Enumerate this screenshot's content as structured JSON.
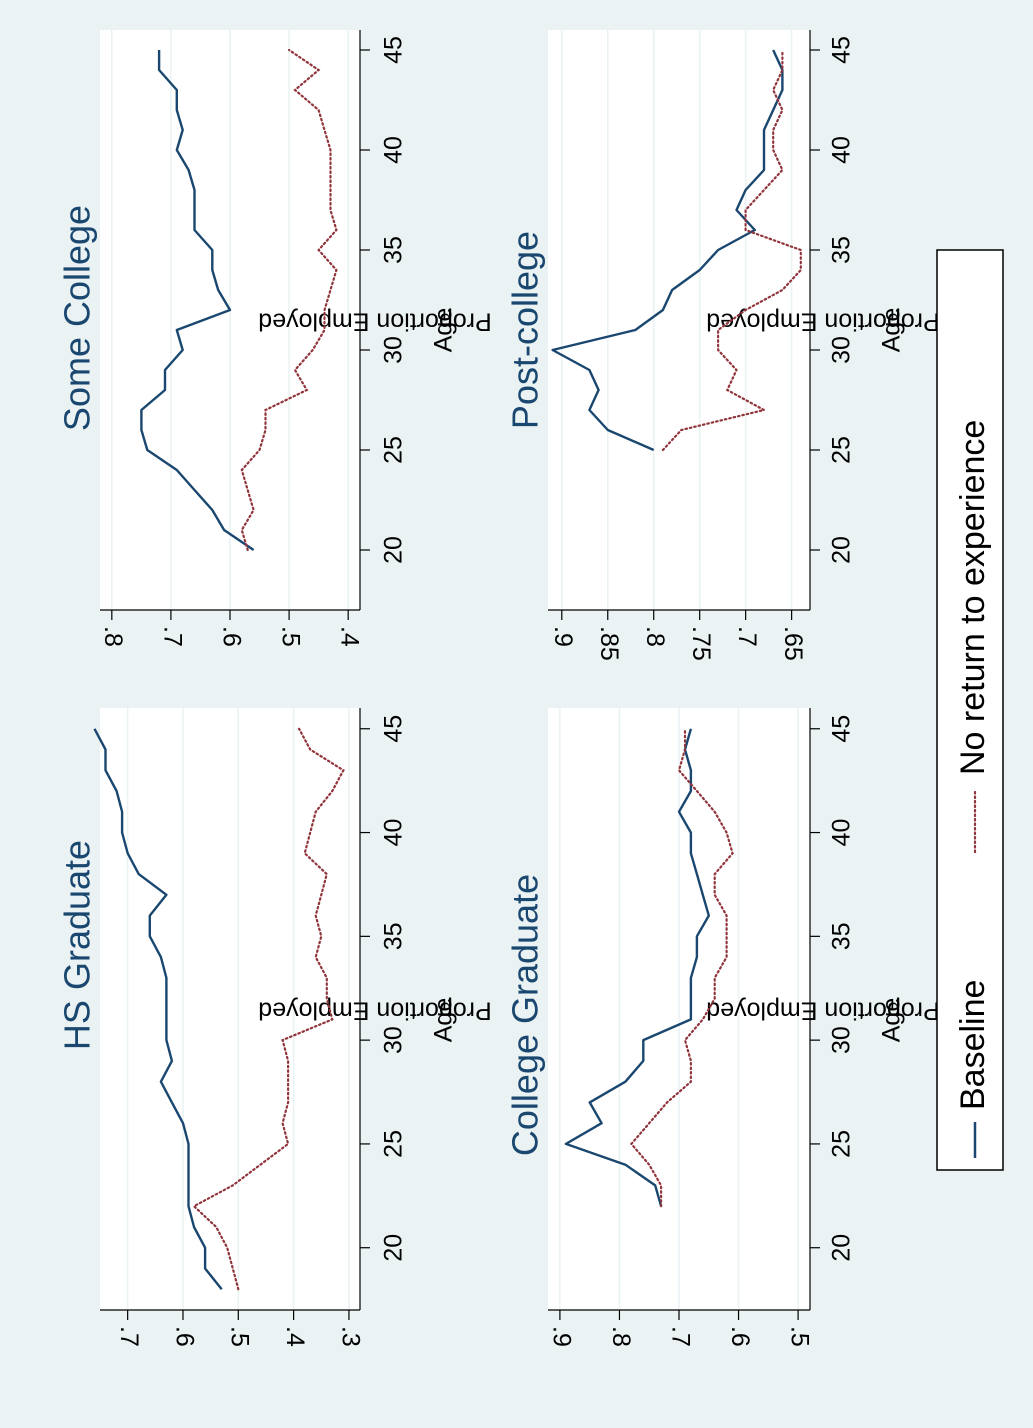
{
  "colors": {
    "baseline": "#1a476f",
    "noreturn": "#90353b",
    "background": "#eaf2f3",
    "grid": "#eaf2f3"
  },
  "legend": {
    "baseline_label": "Baseline",
    "noreturn_label": "No return to experience"
  },
  "chart_data": [
    {
      "type": "line",
      "title": "HS Graduate",
      "xlabel": "Age",
      "ylabel": "Proportion Employed",
      "xlim": [
        17,
        46
      ],
      "ylim": [
        0.28,
        0.75
      ],
      "xticks": [
        20,
        25,
        30,
        35,
        40,
        45
      ],
      "xtick_labels": [
        "20",
        "25",
        "30",
        "35",
        "40",
        "45"
      ],
      "yticks": [
        0.3,
        0.4,
        0.5,
        0.6,
        0.7
      ],
      "ytick_labels": [
        ".3",
        ".4",
        ".5",
        ".6",
        ".7"
      ],
      "series": [
        {
          "name": "Baseline",
          "style": "solid",
          "x": [
            18,
            19,
            20,
            21,
            22,
            23,
            24,
            25,
            26,
            27,
            28,
            29,
            30,
            31,
            32,
            33,
            34,
            35,
            36,
            37,
            38,
            39,
            40,
            41,
            42,
            43,
            44,
            45
          ],
          "y": [
            0.53,
            0.56,
            0.56,
            0.58,
            0.59,
            0.59,
            0.59,
            0.59,
            0.6,
            0.62,
            0.64,
            0.62,
            0.63,
            0.63,
            0.63,
            0.63,
            0.64,
            0.66,
            0.66,
            0.63,
            0.68,
            0.7,
            0.71,
            0.71,
            0.72,
            0.74,
            0.74,
            0.76
          ]
        },
        {
          "name": "No return to experience",
          "style": "dotted",
          "x": [
            18,
            19,
            20,
            21,
            22,
            23,
            24,
            25,
            26,
            27,
            28,
            29,
            30,
            31,
            32,
            33,
            34,
            35,
            36,
            37,
            38,
            39,
            40,
            41,
            42,
            43,
            44,
            45
          ],
          "y": [
            0.5,
            0.51,
            0.52,
            0.54,
            0.58,
            0.51,
            0.46,
            0.41,
            0.42,
            0.41,
            0.41,
            0.41,
            0.42,
            0.33,
            0.34,
            0.34,
            0.36,
            0.35,
            0.36,
            0.35,
            0.34,
            0.38,
            0.37,
            0.36,
            0.33,
            0.31,
            0.37,
            0.39
          ]
        }
      ]
    },
    {
      "type": "line",
      "title": "Some College",
      "xlabel": "Age",
      "ylabel": "Proportion Employed",
      "xlim": [
        17,
        46
      ],
      "ylim": [
        0.38,
        0.82
      ],
      "xticks": [
        20,
        25,
        30,
        35,
        40,
        45
      ],
      "xtick_labels": [
        "20",
        "25",
        "30",
        "35",
        "40",
        "45"
      ],
      "yticks": [
        0.4,
        0.5,
        0.6,
        0.7,
        0.8
      ],
      "ytick_labels": [
        ".4",
        ".5",
        ".6",
        ".7",
        ".8"
      ],
      "series": [
        {
          "name": "Baseline",
          "style": "solid",
          "x": [
            20,
            21,
            22,
            23,
            24,
            25,
            26,
            27,
            28,
            29,
            30,
            31,
            32,
            33,
            34,
            35,
            36,
            37,
            38,
            39,
            40,
            41,
            42,
            43,
            44,
            45
          ],
          "y": [
            0.56,
            0.61,
            0.63,
            0.66,
            0.69,
            0.74,
            0.75,
            0.75,
            0.71,
            0.71,
            0.68,
            0.69,
            0.6,
            0.62,
            0.63,
            0.63,
            0.66,
            0.66,
            0.66,
            0.67,
            0.69,
            0.68,
            0.69,
            0.69,
            0.72,
            0.72
          ]
        },
        {
          "name": "No return to experience",
          "style": "dotted",
          "x": [
            20,
            21,
            22,
            23,
            24,
            25,
            26,
            27,
            28,
            29,
            30,
            31,
            32,
            33,
            34,
            35,
            36,
            37,
            38,
            39,
            40,
            41,
            42,
            43,
            44,
            45
          ],
          "y": [
            0.57,
            0.58,
            0.56,
            0.57,
            0.58,
            0.55,
            0.54,
            0.54,
            0.47,
            0.49,
            0.46,
            0.44,
            0.44,
            0.43,
            0.42,
            0.45,
            0.42,
            0.43,
            0.43,
            0.43,
            0.43,
            0.44,
            0.45,
            0.49,
            0.45,
            0.5
          ]
        }
      ]
    },
    {
      "type": "line",
      "title": "College Graduate",
      "xlabel": "Age",
      "ylabel": "Proportion Employed",
      "xlim": [
        17,
        46
      ],
      "ylim": [
        0.48,
        0.92
      ],
      "xticks": [
        20,
        25,
        30,
        35,
        40,
        45
      ],
      "xtick_labels": [
        "20",
        "25",
        "30",
        "35",
        "40",
        "45"
      ],
      "yticks": [
        0.5,
        0.6,
        0.7,
        0.8,
        0.9
      ],
      "ytick_labels": [
        ".5",
        ".6",
        ".7",
        ".8",
        ".9"
      ],
      "series": [
        {
          "name": "Baseline",
          "style": "solid",
          "x": [
            22,
            23,
            24,
            25,
            26,
            27,
            28,
            29,
            30,
            31,
            32,
            33,
            34,
            35,
            36,
            37,
            38,
            39,
            40,
            41,
            42,
            43,
            44,
            45
          ],
          "y": [
            0.73,
            0.74,
            0.79,
            0.89,
            0.83,
            0.85,
            0.79,
            0.76,
            0.76,
            0.68,
            0.68,
            0.68,
            0.67,
            0.67,
            0.65,
            0.66,
            0.67,
            0.68,
            0.68,
            0.7,
            0.68,
            0.68,
            0.69,
            0.68
          ]
        },
        {
          "name": "No return to experience",
          "style": "dotted",
          "x": [
            22,
            23,
            24,
            25,
            26,
            27,
            28,
            29,
            30,
            31,
            32,
            33,
            34,
            35,
            36,
            37,
            38,
            39,
            40,
            41,
            42,
            43,
            44,
            45
          ],
          "y": [
            0.73,
            0.73,
            0.75,
            0.78,
            0.75,
            0.72,
            0.68,
            0.68,
            0.69,
            0.66,
            0.64,
            0.64,
            0.62,
            0.62,
            0.62,
            0.64,
            0.64,
            0.61,
            0.62,
            0.64,
            0.67,
            0.7,
            0.69,
            0.69
          ]
        }
      ]
    },
    {
      "type": "line",
      "title": "Post-college",
      "xlabel": "Age",
      "ylabel": "Proportion Employed",
      "xlim": [
        17,
        46
      ],
      "ylim": [
        0.63,
        0.915
      ],
      "xticks": [
        20,
        25,
        30,
        35,
        40,
        45
      ],
      "xtick_labels": [
        "20",
        "25",
        "30",
        "35",
        "40",
        "45"
      ],
      "yticks": [
        0.65,
        0.7,
        0.75,
        0.8,
        0.85,
        0.9
      ],
      "ytick_labels": [
        ".65",
        ".7",
        ".75",
        ".8",
        ".85",
        ".9"
      ],
      "series": [
        {
          "name": "Baseline",
          "style": "solid",
          "x": [
            25,
            26,
            27,
            28,
            29,
            30,
            31,
            32,
            33,
            34,
            35,
            36,
            37,
            38,
            39,
            40,
            41,
            42,
            43,
            44,
            45
          ],
          "y": [
            0.8,
            0.85,
            0.87,
            0.86,
            0.87,
            0.91,
            0.82,
            0.79,
            0.78,
            0.75,
            0.73,
            0.69,
            0.71,
            0.7,
            0.68,
            0.68,
            0.68,
            0.67,
            0.66,
            0.66,
            0.67
          ]
        },
        {
          "name": "No return to experience",
          "style": "dotted",
          "x": [
            25,
            26,
            27,
            28,
            29,
            30,
            31,
            32,
            33,
            34,
            35,
            36,
            37,
            38,
            39,
            40,
            41,
            42,
            43,
            44,
            45
          ],
          "y": [
            0.79,
            0.77,
            0.68,
            0.72,
            0.71,
            0.73,
            0.73,
            0.7,
            0.66,
            0.64,
            0.64,
            0.7,
            0.7,
            0.68,
            0.66,
            0.67,
            0.67,
            0.66,
            0.67,
            0.66,
            0.66
          ]
        }
      ]
    }
  ]
}
